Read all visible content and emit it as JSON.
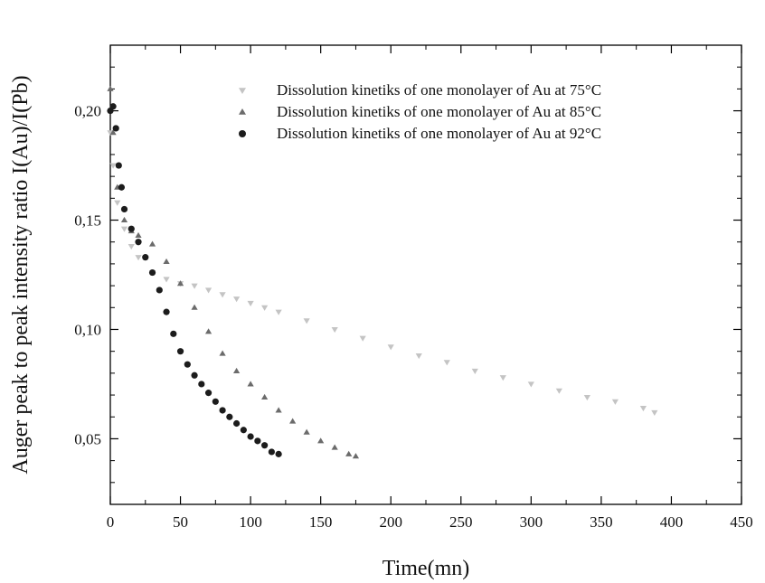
{
  "chart_data": {
    "type": "scatter",
    "xlabel": "Time(mn)",
    "ylabel": "Auger peak to peak intensity ratio I(Au)/I(Pb)",
    "xlim": [
      0,
      450
    ],
    "ylim": [
      0.02,
      0.23
    ],
    "x_ticks": [
      0,
      50,
      100,
      150,
      200,
      250,
      300,
      350,
      400,
      450
    ],
    "x_tick_labels": [
      "0",
      "50",
      "100",
      "150",
      "200",
      "250",
      "300",
      "350",
      "400",
      "450"
    ],
    "y_ticks": [
      0.05,
      0.1,
      0.15,
      0.2
    ],
    "y_tick_labels": [
      "0,05",
      "0,10",
      "0,15",
      "0,20"
    ],
    "grid": false,
    "legend_position": "top-right",
    "series": [
      {
        "name": "Dissolution kinetiks of one monolayer of Au at 75°C",
        "marker": "triangle-down",
        "color": "#c4c4c4",
        "x": [
          0,
          2,
          5,
          10,
          15,
          20,
          30,
          40,
          50,
          60,
          70,
          80,
          90,
          100,
          110,
          120,
          140,
          160,
          180,
          200,
          220,
          240,
          260,
          280,
          300,
          320,
          340,
          360,
          380,
          388
        ],
        "y": [
          0.19,
          0.175,
          0.158,
          0.146,
          0.138,
          0.133,
          0.126,
          0.123,
          0.121,
          0.12,
          0.118,
          0.116,
          0.114,
          0.112,
          0.11,
          0.108,
          0.104,
          0.1,
          0.096,
          0.092,
          0.088,
          0.085,
          0.081,
          0.078,
          0.075,
          0.072,
          0.069,
          0.067,
          0.064,
          0.062
        ]
      },
      {
        "name": "Dissolution kinetiks of one monolayer of Au at 85°C",
        "marker": "triangle-up",
        "color": "#6b6b6b",
        "x": [
          0,
          2,
          5,
          10,
          15,
          20,
          30,
          40,
          50,
          60,
          70,
          80,
          90,
          100,
          110,
          120,
          130,
          140,
          150,
          160,
          170,
          175
        ],
        "y": [
          0.21,
          0.19,
          0.165,
          0.15,
          0.145,
          0.143,
          0.139,
          0.131,
          0.121,
          0.11,
          0.099,
          0.089,
          0.081,
          0.075,
          0.069,
          0.063,
          0.058,
          0.053,
          0.049,
          0.046,
          0.043,
          0.042
        ]
      },
      {
        "name": "Dissolution kinetiks of one monolayer of Au at 92°C",
        "marker": "circle",
        "color": "#1c1c1c",
        "x": [
          0,
          2,
          4,
          6,
          8,
          10,
          15,
          20,
          25,
          30,
          35,
          40,
          45,
          50,
          55,
          60,
          65,
          70,
          75,
          80,
          85,
          90,
          95,
          100,
          105,
          110,
          115,
          120
        ],
        "y": [
          0.2,
          0.202,
          0.192,
          0.175,
          0.165,
          0.155,
          0.146,
          0.14,
          0.133,
          0.126,
          0.118,
          0.108,
          0.098,
          0.09,
          0.084,
          0.079,
          0.075,
          0.071,
          0.067,
          0.063,
          0.06,
          0.057,
          0.054,
          0.051,
          0.049,
          0.047,
          0.044,
          0.043
        ]
      }
    ]
  }
}
